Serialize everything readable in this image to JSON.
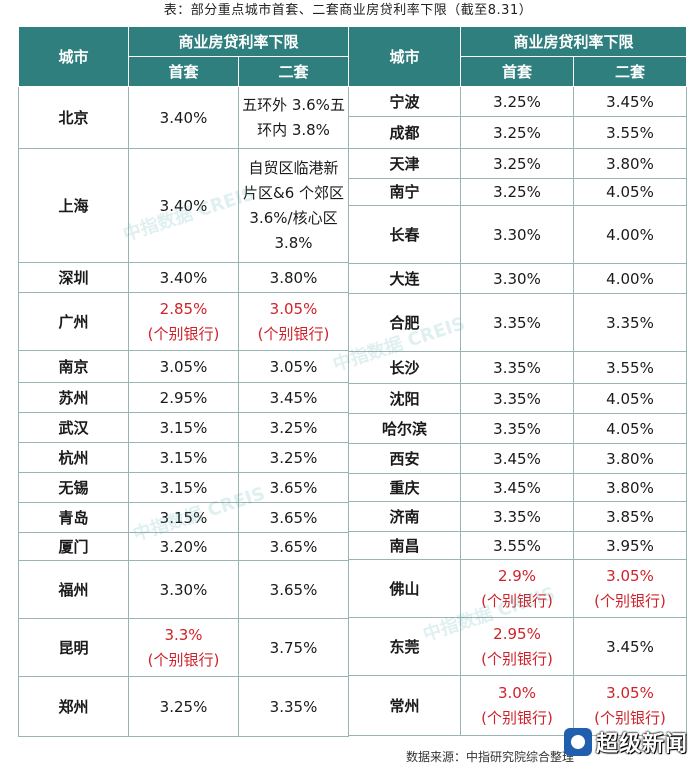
{
  "caption": "表：部分重点城市首套、二套商业房贷利率下限（截至8.31）",
  "header": {
    "city": "城市",
    "group": "商业房贷利率下限",
    "first": "首套",
    "second": "二套"
  },
  "left_rows": [
    {
      "city": "北京",
      "first": "3.40%",
      "second_lines": [
        "五环外 3.6%五",
        "环内 3.8%"
      ]
    },
    {
      "city": "上海",
      "first": "3.40%",
      "second_lines": [
        "自贸区临港新",
        "片区&6 个郊区",
        "3.6%/核心区",
        "3.8%"
      ]
    },
    {
      "city": "深圳",
      "first": "3.40%",
      "second": "3.80%"
    },
    {
      "city": "广州",
      "first": "2.85%",
      "first_note": "(个别银行)",
      "second": "3.05%",
      "second_note": "(个别银行)"
    },
    {
      "city": "南京",
      "first": "3.05%",
      "second": "3.05%"
    },
    {
      "city": "苏州",
      "first": "2.95%",
      "second": "3.45%"
    },
    {
      "city": "武汉",
      "first": "3.15%",
      "second": "3.25%"
    },
    {
      "city": "杭州",
      "first": "3.15%",
      "second": "3.25%"
    },
    {
      "city": "无锡",
      "first": "3.15%",
      "second": "3.65%"
    },
    {
      "city": "青岛",
      "first": "3.15%",
      "second": "3.65%"
    },
    {
      "city": "厦门",
      "first": "3.20%",
      "second": "3.65%"
    },
    {
      "city": "福州",
      "first": "3.30%",
      "second": "3.65%"
    },
    {
      "city": "昆明",
      "first": "3.3%",
      "first_note": "(个别银行)",
      "second": "3.75%"
    },
    {
      "city": "郑州",
      "first": "3.25%",
      "second": "3.35%"
    }
  ],
  "right_rows": [
    {
      "city": "宁波",
      "first": "3.25%",
      "second": "3.45%"
    },
    {
      "city": "成都",
      "first": "3.25%",
      "second": "3.55%"
    },
    {
      "city": "天津",
      "first": "3.25%",
      "second": "3.80%"
    },
    {
      "city": "南宁",
      "first": "3.25%",
      "second": "4.05%"
    },
    {
      "city": "长春",
      "first": "3.30%",
      "second": "4.00%"
    },
    {
      "city": "大连",
      "first": "3.30%",
      "second": "4.00%"
    },
    {
      "city": "合肥",
      "first": "3.35%",
      "second": "3.35%"
    },
    {
      "city": "长沙",
      "first": "3.35%",
      "second": "3.55%"
    },
    {
      "city": "沈阳",
      "first": "3.35%",
      "second": "4.05%"
    },
    {
      "city": "哈尔滨",
      "first": "3.35%",
      "second": "4.05%"
    },
    {
      "city": "西安",
      "first": "3.45%",
      "second": "3.80%"
    },
    {
      "city": "重庆",
      "first": "3.45%",
      "second": "3.80%"
    },
    {
      "city": "济南",
      "first": "3.35%",
      "second": "3.85%"
    },
    {
      "city": "南昌",
      "first": "3.55%",
      "second": "3.95%"
    },
    {
      "city": "佛山",
      "first": "2.9%",
      "first_note": "(个别银行)",
      "second": "3.05%",
      "second_note": "(个别银行)"
    },
    {
      "city": "东莞",
      "first": "2.95%",
      "first_note": "(个别银行)",
      "second": "3.45%"
    },
    {
      "city": "常州",
      "first": "3.0%",
      "first_note": "(个别银行)",
      "second": "3.05%",
      "second_note": "(个别银行)"
    }
  ],
  "watermark": {
    "cn": "中指数据",
    "en": "CREIS"
  },
  "source": "数据来源：中指研究院综合整理",
  "logo_text": "超级新闻",
  "colors": {
    "header_bg": "#2e7f7d",
    "header_text": "#ffffff",
    "note_red": "#d0222a",
    "border": "#9cb3b3"
  }
}
